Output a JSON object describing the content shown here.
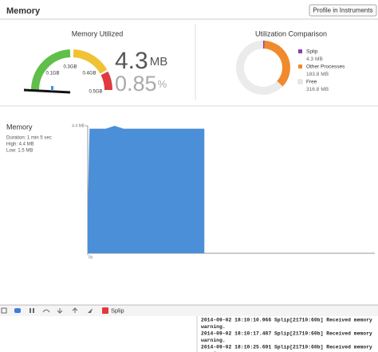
{
  "header": {
    "title": "Memory",
    "button": "Profile in Instruments"
  },
  "gauge": {
    "title": "Memory Utilized",
    "scale_labels": [
      "0.1GB",
      "0.3GB",
      "0.4GB",
      "0.5GB"
    ],
    "value": 4.3,
    "unit": "MB",
    "percent": 0.85,
    "percent_unit": "%"
  },
  "comparison": {
    "title": "Utilization Comparison",
    "items": [
      {
        "name": "Splip",
        "value": 4.3,
        "unit": "MB",
        "color": "#8e3fae"
      },
      {
        "name": "Other Processes",
        "value": 183.8,
        "unit": "MB",
        "color": "#f08a2c"
      },
      {
        "name": "Free",
        "value": 316.8,
        "unit": "MB",
        "color": "#ebebeb"
      }
    ]
  },
  "timeline": {
    "title": "Memory",
    "stats": [
      "Duration: 1 min 5 sec",
      "High: 4.4 MB",
      "Low: 1.5 MB"
    ]
  },
  "chart_data": {
    "type": "area",
    "x": [
      0,
      1,
      3,
      10,
      15,
      20,
      30,
      40,
      50,
      60,
      65
    ],
    "values": [
      1.5,
      4.3,
      4.3,
      4.3,
      4.4,
      4.3,
      4.3,
      4.3,
      4.3,
      4.3,
      4.3
    ],
    "color": "#4a8fd8",
    "xlim": [
      0,
      160
    ],
    "ylim": [
      0,
      4.4
    ],
    "xticks": [
      {
        "value": 0,
        "label": "0s"
      }
    ],
    "yticks": [
      {
        "value": 4.4,
        "label": "4.4 MB"
      }
    ]
  },
  "toolbar": {
    "target": "Splip"
  },
  "console": {
    "lines": [
      "2014-09-02 18:10:10.966 Splip[21710:60b] Received memory",
      "warning.",
      "2014-09-02 18:10:17.487 Splip[21710:60b] Received memory",
      "warning.",
      "2014-09-02 18:10:25.691 Splip[21710:60b] Received memory",
      "warning."
    ]
  }
}
